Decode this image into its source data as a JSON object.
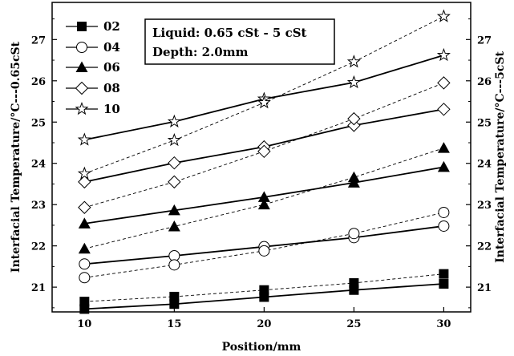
{
  "chart_data": {
    "type": "line",
    "x": [
      10,
      15,
      20,
      25,
      30
    ],
    "xlabel": "Position/mm",
    "ylabel_left": "Interfacial Temperature/°C---0.65cSt",
    "ylabel_right": "Interfacial Temperature/°C---5cSt",
    "xlim": [
      8.2,
      31.5
    ],
    "ylim": [
      20.4,
      27.9
    ],
    "xticks": [
      "10",
      "15",
      "20",
      "25",
      "30"
    ],
    "yticks": [
      "21",
      "22",
      "23",
      "24",
      "25",
      "26",
      "27"
    ],
    "annotation": {
      "line1": "Liquid: 0.65 cSt - 5 cSt",
      "line2": "Depth: 2.0mm"
    },
    "legend": [
      {
        "label": "02",
        "marker": "square"
      },
      {
        "label": "04",
        "marker": "circle"
      },
      {
        "label": "06",
        "marker": "triangle"
      },
      {
        "label": "08",
        "marker": "diamond"
      },
      {
        "label": "10",
        "marker": "star"
      }
    ],
    "series": [
      {
        "name": "02",
        "liquid": "0.65cSt",
        "marker": "square",
        "line": "solid",
        "values": [
          20.47,
          20.59,
          20.76,
          20.93,
          21.08
        ]
      },
      {
        "name": "02",
        "liquid": "5cSt",
        "marker": "square",
        "line": "dashed",
        "values": [
          20.65,
          20.77,
          20.93,
          21.1,
          21.32
        ]
      },
      {
        "name": "04",
        "liquid": "0.65cSt",
        "marker": "circle",
        "line": "solid",
        "values": [
          21.56,
          21.76,
          21.98,
          22.2,
          22.48
        ]
      },
      {
        "name": "04",
        "liquid": "5cSt",
        "marker": "circle",
        "line": "dashed",
        "values": [
          21.23,
          21.54,
          21.88,
          22.3,
          22.81
        ]
      },
      {
        "name": "06",
        "liquid": "0.65cSt",
        "marker": "triangle",
        "line": "solid",
        "values": [
          22.54,
          22.86,
          23.18,
          23.53,
          23.91
        ]
      },
      {
        "name": "06",
        "liquid": "5cSt",
        "marker": "triangle",
        "line": "dashed",
        "values": [
          21.93,
          22.47,
          23.0,
          23.66,
          24.37
        ]
      },
      {
        "name": "08",
        "liquid": "0.65cSt",
        "marker": "diamond",
        "line": "solid",
        "values": [
          23.55,
          24.01,
          24.4,
          24.92,
          25.31
        ]
      },
      {
        "name": "08",
        "liquid": "5cSt",
        "marker": "diamond",
        "line": "dashed",
        "values": [
          22.93,
          23.55,
          24.29,
          25.08,
          25.95
        ]
      },
      {
        "name": "10",
        "liquid": "0.65cSt",
        "marker": "star",
        "line": "solid",
        "values": [
          24.57,
          25.01,
          25.56,
          25.96,
          26.62
        ]
      },
      {
        "name": "10",
        "liquid": "5cSt",
        "marker": "star",
        "line": "dashed",
        "values": [
          23.75,
          24.56,
          25.47,
          26.46,
          27.56
        ]
      }
    ],
    "grid": false,
    "legend_position": "top-left"
  }
}
